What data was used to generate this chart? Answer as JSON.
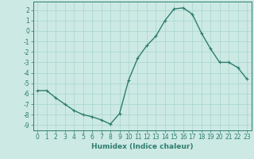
{
  "x": [
    0,
    1,
    2,
    3,
    4,
    5,
    6,
    7,
    8,
    9,
    10,
    11,
    12,
    13,
    14,
    15,
    16,
    17,
    18,
    19,
    20,
    21,
    22,
    23
  ],
  "y": [
    -5.7,
    -5.7,
    -6.4,
    -7.0,
    -7.6,
    -8.0,
    -8.2,
    -8.5,
    -8.9,
    -7.9,
    -4.7,
    -2.6,
    -1.4,
    -0.5,
    1.0,
    2.1,
    2.2,
    1.6,
    -0.2,
    -1.7,
    -3.0,
    -3.0,
    -3.5,
    -4.6
  ],
  "line_color": "#2e7d6e",
  "marker": "+",
  "marker_size": 3,
  "marker_edge_width": 0.8,
  "line_width": 1.0,
  "bg_color": "#cce9e4",
  "grid_color": "#a8d5cc",
  "xlabel": "Humidex (Indice chaleur)",
  "xlabel_fontsize": 6.5,
  "tick_fontsize": 5.5,
  "xlim": [
    -0.5,
    23.5
  ],
  "ylim": [
    -9.5,
    2.8
  ],
  "yticks": [
    2,
    1,
    0,
    -1,
    -2,
    -3,
    -4,
    -5,
    -6,
    -7,
    -8,
    -9
  ],
  "xticks": [
    0,
    1,
    2,
    3,
    4,
    5,
    6,
    7,
    8,
    9,
    10,
    11,
    12,
    13,
    14,
    15,
    16,
    17,
    18,
    19,
    20,
    21,
    22,
    23
  ]
}
